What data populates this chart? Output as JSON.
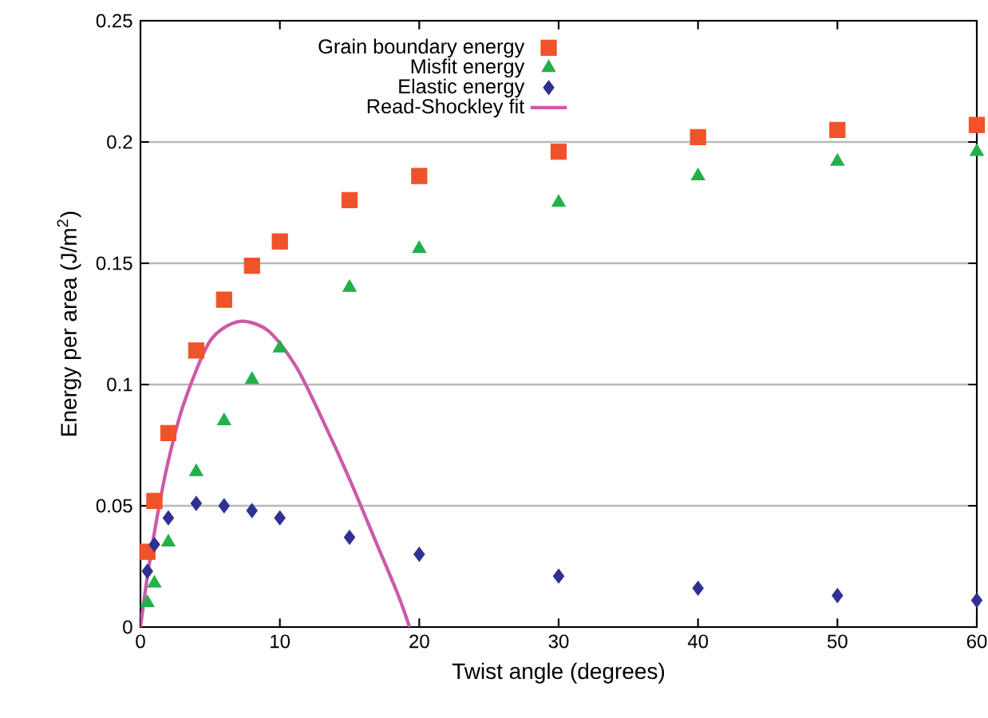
{
  "chart_data": {
    "type": "scatter",
    "xlabel": "Twist angle (degrees)",
    "ylabel": "Energy per area (J/m$^{2}$)",
    "xlim": [
      0,
      60
    ],
    "ylim": [
      0,
      0.25
    ],
    "xticks": [
      0,
      10,
      20,
      30,
      40,
      50,
      60
    ],
    "yticks": [
      0,
      0.05,
      0.1,
      0.15,
      0.2,
      0.25
    ],
    "grid": "y",
    "legend": "top left",
    "series": [
      {
        "name": "Grain boundary energy",
        "marker": "square",
        "color": "#f0522a",
        "x": [
          0.5,
          1,
          2,
          4,
          6,
          8,
          10,
          15,
          20,
          30,
          40,
          50,
          60
        ],
        "values": [
          0.031,
          0.052,
          0.08,
          0.114,
          0.135,
          0.149,
          0.159,
          0.176,
          0.186,
          0.196,
          0.202,
          0.205,
          0.207
        ]
      },
      {
        "name": "Misfit energy",
        "marker": "triangle",
        "color": "#22b04b",
        "x": [
          0.5,
          1,
          2,
          4,
          6,
          8,
          10,
          15,
          20,
          30,
          40,
          50,
          60
        ],
        "values": [
          0.01,
          0.018,
          0.035,
          0.064,
          0.085,
          0.102,
          0.115,
          0.14,
          0.156,
          0.175,
          0.186,
          0.192,
          0.196
        ]
      },
      {
        "name": "Elastic energy",
        "marker": "diamond",
        "color": "#2e3192",
        "x": [
          0.5,
          1,
          2,
          4,
          6,
          8,
          10,
          15,
          20,
          30,
          40,
          50,
          60
        ],
        "values": [
          0.023,
          0.034,
          0.045,
          0.051,
          0.05,
          0.048,
          0.045,
          0.037,
          0.03,
          0.021,
          0.016,
          0.013,
          0.011
        ]
      },
      {
        "name": "Read-Shockley fit",
        "type": "line",
        "marker": "none",
        "line_style": "solid",
        "color": "#cc5aa9",
        "x": [
          0,
          0.4,
          1,
          1.9,
          3.1,
          5,
          7.1,
          9.2,
          11.2,
          13.1,
          15,
          16.9,
          18.5,
          19.3
        ],
        "values": [
          0,
          0.017,
          0.039,
          0.066,
          0.092,
          0.118,
          0.126,
          0.122,
          0.107,
          0.085,
          0.061,
          0.035,
          0.013,
          0
        ]
      }
    ]
  }
}
